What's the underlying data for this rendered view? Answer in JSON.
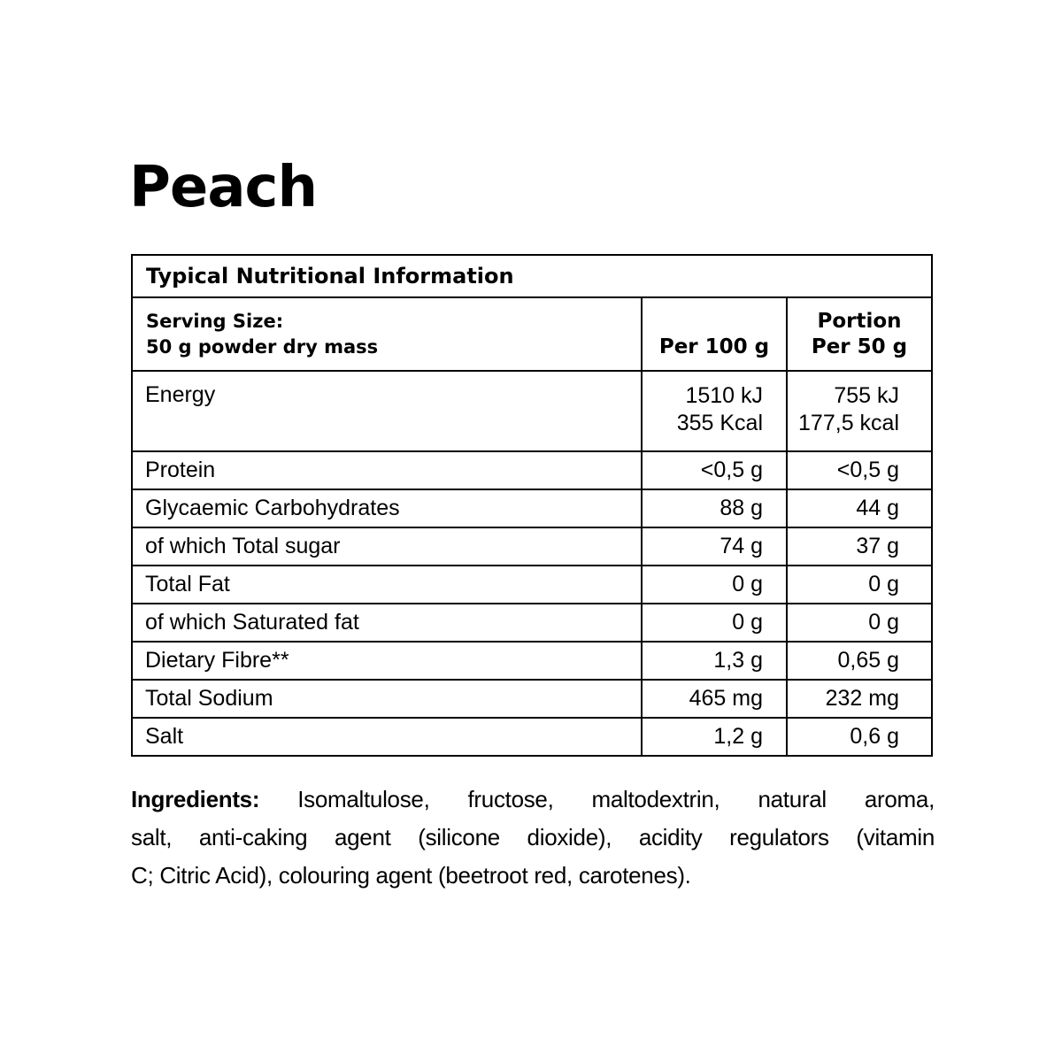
{
  "page": {
    "title": "Peach"
  },
  "table": {
    "title": "Typical Nutritional Information",
    "header": {
      "serving_line1": "Serving Size:",
      "serving_line2": "50 g powder dry mass",
      "per100": "Per 100 g",
      "portion_line1": "Portion",
      "portion_line2": "Per 50 g"
    },
    "energy": {
      "label": "Energy",
      "per100": [
        "1510 kJ",
        "355 Kcal"
      ],
      "per50": [
        "755 kJ",
        "177,5 kcal"
      ]
    },
    "rows": [
      {
        "label": "Protein",
        "per100": "<0,5 g",
        "per50": "<0,5 g"
      },
      {
        "label": "Glycaemic Carbohydrates",
        "per100": "88 g",
        "per50": "44 g"
      },
      {
        "label": "of which Total sugar",
        "per100": "74 g",
        "per50": "37 g"
      },
      {
        "label": "Total Fat",
        "per100": "0 g",
        "per50": "0 g"
      },
      {
        "label": "of which Saturated fat",
        "per100": "0 g",
        "per50": "0 g"
      },
      {
        "label": "Dietary Fibre**",
        "per100": "1,3 g",
        "per50": "0,65 g"
      },
      {
        "label": "Total Sodium",
        "per100": "465 mg",
        "per50": "232 mg"
      },
      {
        "label": "Salt",
        "per100": "1,2 g",
        "per50": "0,6 g"
      }
    ]
  },
  "ingredients": {
    "label": "Ingredients:",
    "line1_rest": " Isomaltulose, fructose, maltodextrin, natural aroma,",
    "line2": "salt, anti-caking agent (silicone dioxide), acidity regulators (vitamin",
    "line3": "C; Citric Acid), colouring agent (beetroot red, carotenes)."
  },
  "colors": {
    "text": "#000000",
    "background": "#ffffff",
    "border": "#000000"
  }
}
